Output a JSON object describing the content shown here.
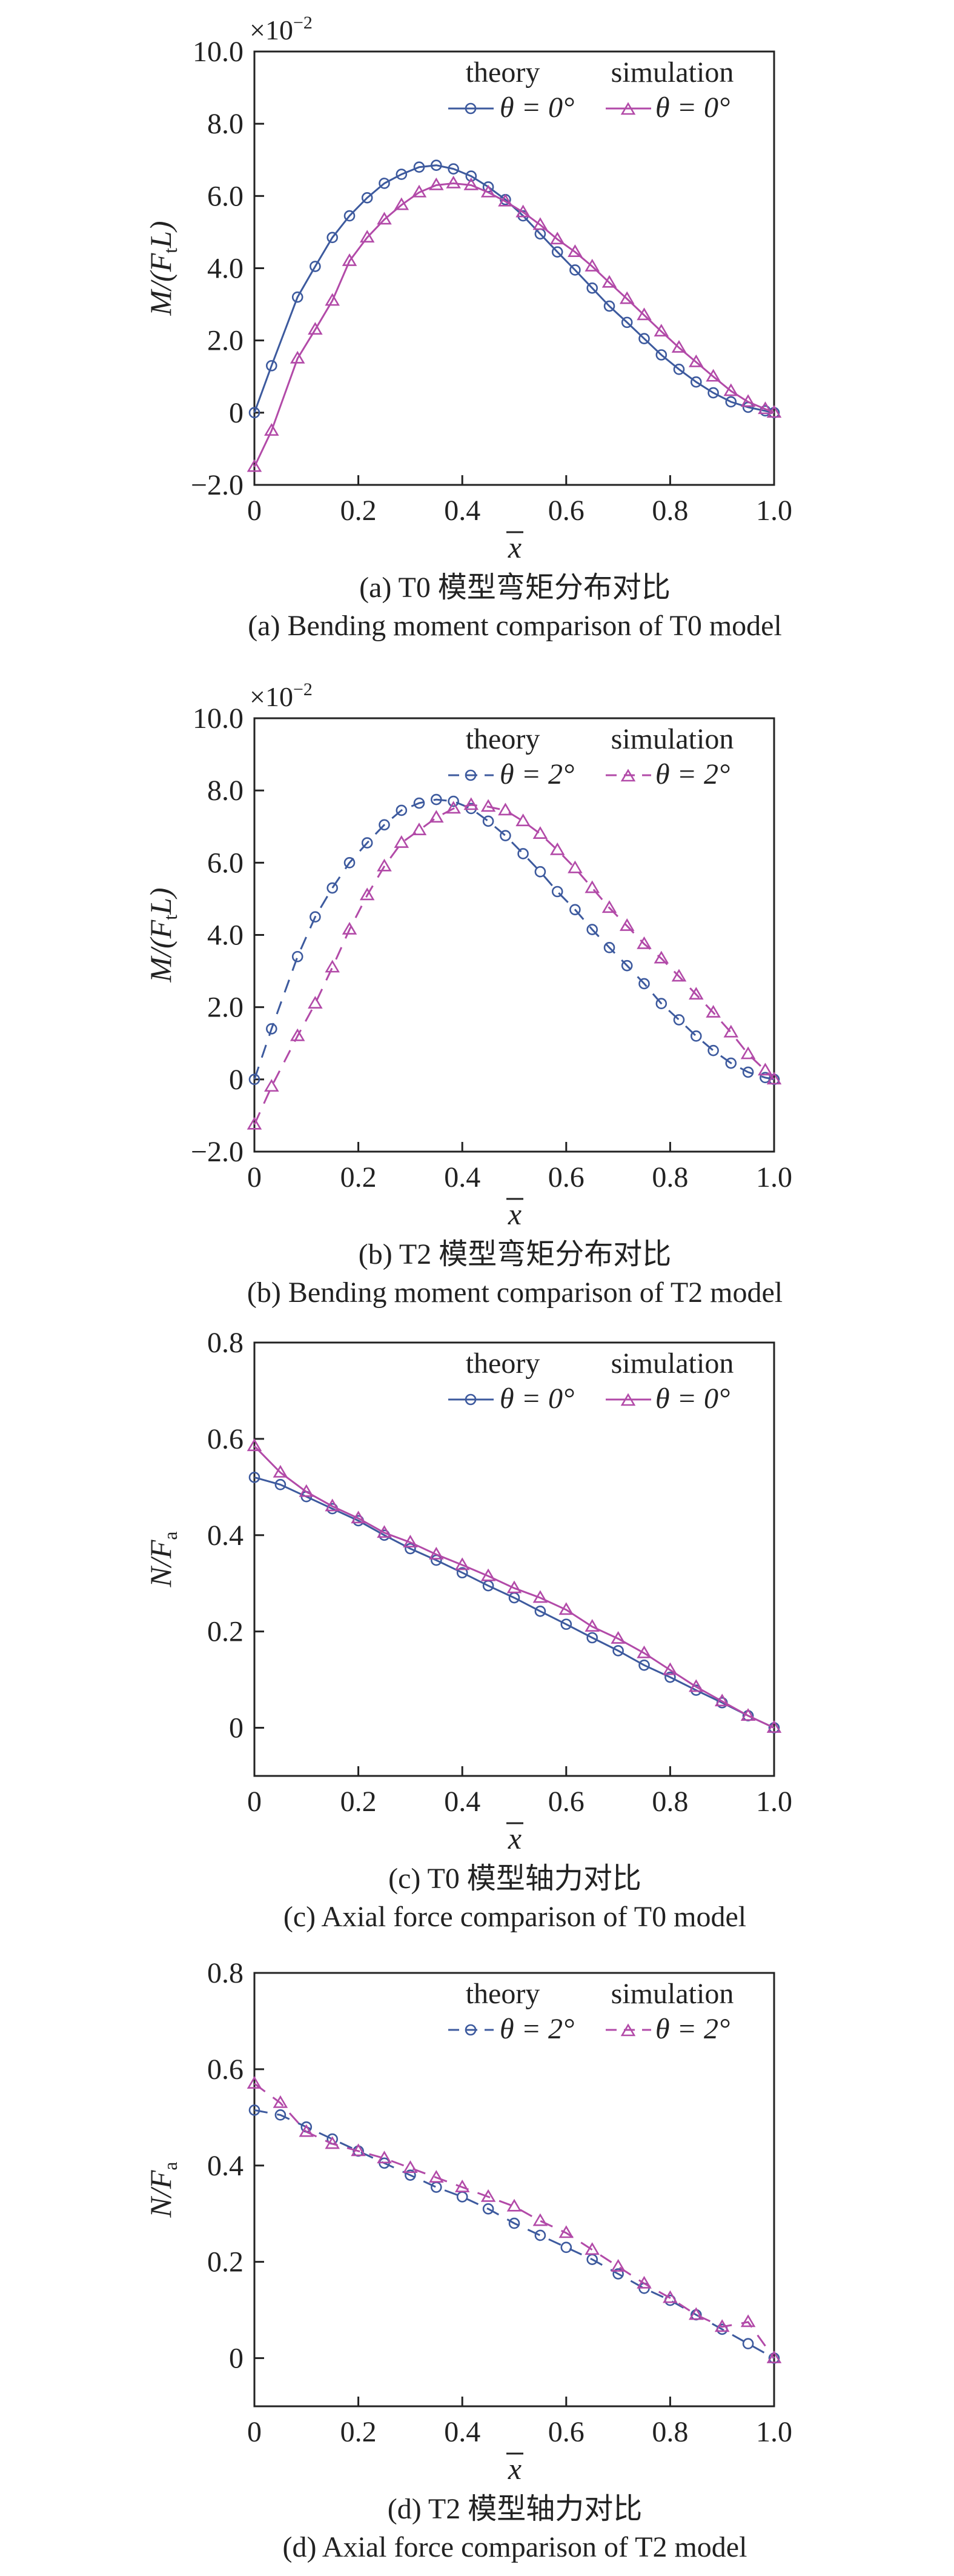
{
  "colors": {
    "theory": "#3d5a9e",
    "simulation": "#b24aa8",
    "axis": "#222222"
  },
  "panels": [
    {
      "id": "a",
      "caption_cn": "(a) T0 模型弯矩分布对比",
      "caption_en": "(a) Bending moment comparison of T0 model",
      "ylabel": "M/(F",
      "ylabel_sub": "t",
      "ylabel_tail": "L)",
      "multiplier": "×10",
      "multiplier_exp": "−2",
      "xlabel": "x",
      "legend": {
        "theory_title": "theory",
        "simulation_title": "simulation",
        "theory_label": "θ = 0°",
        "simulation_label": "θ = 0°",
        "dashed": false
      },
      "yticks": [
        "−2.0",
        "0",
        "2.0",
        "4.0",
        "6.0",
        "8.0",
        "10.0"
      ],
      "xticks": [
        "0",
        "0.2",
        "0.4",
        "0.6",
        "0.8",
        "1.0"
      ]
    },
    {
      "id": "b",
      "caption_cn": "(b) T2 模型弯矩分布对比",
      "caption_en": "(b) Bending moment comparison of T2 model",
      "ylabel": "M/(F",
      "ylabel_sub": "t",
      "ylabel_tail": "L)",
      "multiplier": "×10",
      "multiplier_exp": "−2",
      "xlabel": "x",
      "legend": {
        "theory_title": "theory",
        "simulation_title": "simulation",
        "theory_label": "θ = 2°",
        "simulation_label": "θ = 2°",
        "dashed": true
      },
      "yticks": [
        "−2.0",
        "0",
        "2.0",
        "4.0",
        "6.0",
        "8.0",
        "10.0"
      ],
      "xticks": [
        "0",
        "0.2",
        "0.4",
        "0.6",
        "0.8",
        "1.0"
      ]
    },
    {
      "id": "c",
      "caption_cn": "(c) T0 模型轴力对比",
      "caption_en": "(c) Axial force comparison of T0 model",
      "ylabel": "N/F",
      "ylabel_sub": "a",
      "ylabel_tail": "",
      "multiplier": "",
      "multiplier_exp": "",
      "xlabel": "x",
      "legend": {
        "theory_title": "theory",
        "simulation_title": "simulation",
        "theory_label": "θ = 0°",
        "simulation_label": "θ = 0°",
        "dashed": false
      },
      "yticks": [
        "0",
        "0.2",
        "0.4",
        "0.6",
        "0.8"
      ],
      "xticks": [
        "0",
        "0.2",
        "0.4",
        "0.6",
        "0.8",
        "1.0"
      ]
    },
    {
      "id": "d",
      "caption_cn": "(d) T2 模型轴力对比",
      "caption_en": "(d) Axial force comparison of T2 model",
      "ylabel": "N/F",
      "ylabel_sub": "a",
      "ylabel_tail": "",
      "multiplier": "",
      "multiplier_exp": "",
      "xlabel": "x",
      "legend": {
        "theory_title": "theory",
        "simulation_title": "simulation",
        "theory_label": "θ = 2°",
        "simulation_label": "θ = 2°",
        "dashed": true
      },
      "yticks": [
        "0",
        "0.2",
        "0.4",
        "0.6",
        "0.8"
      ],
      "xticks": [
        "0",
        "0.2",
        "0.4",
        "0.6",
        "0.8",
        "1.0"
      ]
    }
  ],
  "chart_data": [
    {
      "type": "line",
      "xlabel": "x",
      "ylabel": "M/(FtL)",
      "xlim": [
        0,
        1.0
      ],
      "ylim": [
        -2.0,
        10.0
      ],
      "series": [
        {
          "name": "theory θ = 0°",
          "marker": "circle",
          "x": [
            0,
            0.033,
            0.083,
            0.117,
            0.15,
            0.183,
            0.217,
            0.25,
            0.283,
            0.317,
            0.35,
            0.383,
            0.417,
            0.45,
            0.483,
            0.517,
            0.55,
            0.583,
            0.617,
            0.65,
            0.683,
            0.717,
            0.75,
            0.783,
            0.817,
            0.85,
            0.883,
            0.917,
            0.95,
            0.983,
            1.0
          ],
          "y": [
            0,
            1.3,
            3.2,
            4.05,
            4.85,
            5.45,
            5.95,
            6.35,
            6.6,
            6.8,
            6.85,
            6.75,
            6.55,
            6.25,
            5.9,
            5.45,
            4.95,
            4.45,
            3.95,
            3.45,
            2.95,
            2.5,
            2.05,
            1.6,
            1.2,
            0.85,
            0.55,
            0.3,
            0.15,
            0.05,
            0
          ]
        },
        {
          "name": "simulation θ = 0°",
          "marker": "triangle",
          "x": [
            0,
            0.033,
            0.083,
            0.117,
            0.15,
            0.183,
            0.217,
            0.25,
            0.283,
            0.317,
            0.35,
            0.383,
            0.417,
            0.45,
            0.483,
            0.517,
            0.55,
            0.583,
            0.617,
            0.65,
            0.683,
            0.717,
            0.75,
            0.783,
            0.817,
            0.85,
            0.883,
            0.917,
            0.95,
            0.983,
            1.0
          ],
          "y": [
            -1.5,
            -0.5,
            1.5,
            2.3,
            3.1,
            4.2,
            4.85,
            5.35,
            5.75,
            6.1,
            6.3,
            6.35,
            6.3,
            6.1,
            5.85,
            5.55,
            5.2,
            4.8,
            4.45,
            4.05,
            3.6,
            3.15,
            2.7,
            2.25,
            1.8,
            1.4,
            1.0,
            0.6,
            0.3,
            0.1,
            0
          ]
        }
      ]
    },
    {
      "type": "line",
      "xlabel": "x",
      "ylabel": "M/(FtL)",
      "xlim": [
        0,
        1.0
      ],
      "ylim": [
        -2.0,
        10.0
      ],
      "series": [
        {
          "name": "theory θ = 2°",
          "marker": "circle",
          "x": [
            0,
            0.033,
            0.083,
            0.117,
            0.15,
            0.183,
            0.217,
            0.25,
            0.283,
            0.317,
            0.35,
            0.383,
            0.417,
            0.45,
            0.483,
            0.517,
            0.55,
            0.583,
            0.617,
            0.65,
            0.683,
            0.717,
            0.75,
            0.783,
            0.817,
            0.85,
            0.883,
            0.917,
            0.95,
            0.983,
            1.0
          ],
          "y": [
            0,
            1.4,
            3.4,
            4.5,
            5.3,
            6.0,
            6.55,
            7.05,
            7.45,
            7.65,
            7.75,
            7.7,
            7.5,
            7.15,
            6.75,
            6.25,
            5.75,
            5.2,
            4.7,
            4.15,
            3.65,
            3.15,
            2.65,
            2.1,
            1.65,
            1.2,
            0.8,
            0.45,
            0.2,
            0.05,
            0
          ]
        },
        {
          "name": "simulation θ = 2°",
          "marker": "triangle",
          "x": [
            0,
            0.033,
            0.083,
            0.117,
            0.15,
            0.183,
            0.217,
            0.25,
            0.283,
            0.317,
            0.35,
            0.383,
            0.417,
            0.45,
            0.483,
            0.517,
            0.55,
            0.583,
            0.617,
            0.65,
            0.683,
            0.717,
            0.75,
            0.783,
            0.817,
            0.85,
            0.883,
            0.917,
            0.95,
            0.983,
            1.0
          ],
          "y": [
            -1.25,
            -0.2,
            1.2,
            2.1,
            3.1,
            4.15,
            5.1,
            5.9,
            6.55,
            6.9,
            7.25,
            7.5,
            7.6,
            7.55,
            7.45,
            7.15,
            6.8,
            6.35,
            5.85,
            5.3,
            4.75,
            4.25,
            3.75,
            3.35,
            2.85,
            2.35,
            1.85,
            1.3,
            0.7,
            0.25,
            0
          ]
        }
      ]
    },
    {
      "type": "line",
      "xlabel": "x",
      "ylabel": "N/Fa",
      "xlim": [
        0,
        1.0
      ],
      "ylim": [
        -0.1,
        0.8
      ],
      "series": [
        {
          "name": "theory θ = 0°",
          "marker": "circle",
          "x": [
            0,
            0.05,
            0.1,
            0.15,
            0.2,
            0.25,
            0.3,
            0.35,
            0.4,
            0.45,
            0.5,
            0.55,
            0.6,
            0.65,
            0.7,
            0.75,
            0.8,
            0.85,
            0.9,
            0.95,
            1.0
          ],
          "y": [
            0.52,
            0.505,
            0.48,
            0.455,
            0.43,
            0.4,
            0.372,
            0.348,
            0.322,
            0.295,
            0.27,
            0.242,
            0.215,
            0.187,
            0.16,
            0.13,
            0.105,
            0.078,
            0.052,
            0.025,
            0
          ]
        },
        {
          "name": "simulation θ = 0°",
          "marker": "triangle",
          "x": [
            0,
            0.05,
            0.1,
            0.15,
            0.2,
            0.25,
            0.3,
            0.35,
            0.4,
            0.45,
            0.5,
            0.55,
            0.6,
            0.65,
            0.7,
            0.75,
            0.8,
            0.85,
            0.9,
            0.95,
            1.0
          ],
          "y": [
            0.585,
            0.53,
            0.49,
            0.46,
            0.435,
            0.405,
            0.385,
            0.36,
            0.338,
            0.315,
            0.29,
            0.27,
            0.245,
            0.21,
            0.185,
            0.155,
            0.12,
            0.085,
            0.055,
            0.025,
            0
          ]
        }
      ]
    },
    {
      "type": "line",
      "xlabel": "x",
      "ylabel": "N/Fa",
      "xlim": [
        0,
        1.0
      ],
      "ylim": [
        -0.1,
        0.8
      ],
      "series": [
        {
          "name": "theory θ = 2°",
          "marker": "circle",
          "x": [
            0,
            0.05,
            0.1,
            0.15,
            0.2,
            0.25,
            0.3,
            0.35,
            0.4,
            0.45,
            0.5,
            0.55,
            0.6,
            0.65,
            0.7,
            0.75,
            0.8,
            0.85,
            0.9,
            0.95,
            1.0
          ],
          "y": [
            0.515,
            0.505,
            0.48,
            0.455,
            0.43,
            0.405,
            0.38,
            0.355,
            0.335,
            0.31,
            0.28,
            0.255,
            0.23,
            0.205,
            0.175,
            0.145,
            0.12,
            0.09,
            0.06,
            0.03,
            0
          ]
        },
        {
          "name": "simulation θ = 2°",
          "marker": "triangle",
          "x": [
            0,
            0.05,
            0.1,
            0.15,
            0.2,
            0.25,
            0.3,
            0.35,
            0.4,
            0.45,
            0.5,
            0.55,
            0.6,
            0.65,
            0.7,
            0.75,
            0.8,
            0.85,
            0.9,
            0.95,
            1.0
          ],
          "y": [
            0.57,
            0.53,
            0.47,
            0.445,
            0.43,
            0.415,
            0.395,
            0.375,
            0.355,
            0.335,
            0.315,
            0.285,
            0.26,
            0.225,
            0.19,
            0.155,
            0.125,
            0.09,
            0.065,
            0.075,
            0
          ]
        }
      ]
    }
  ]
}
